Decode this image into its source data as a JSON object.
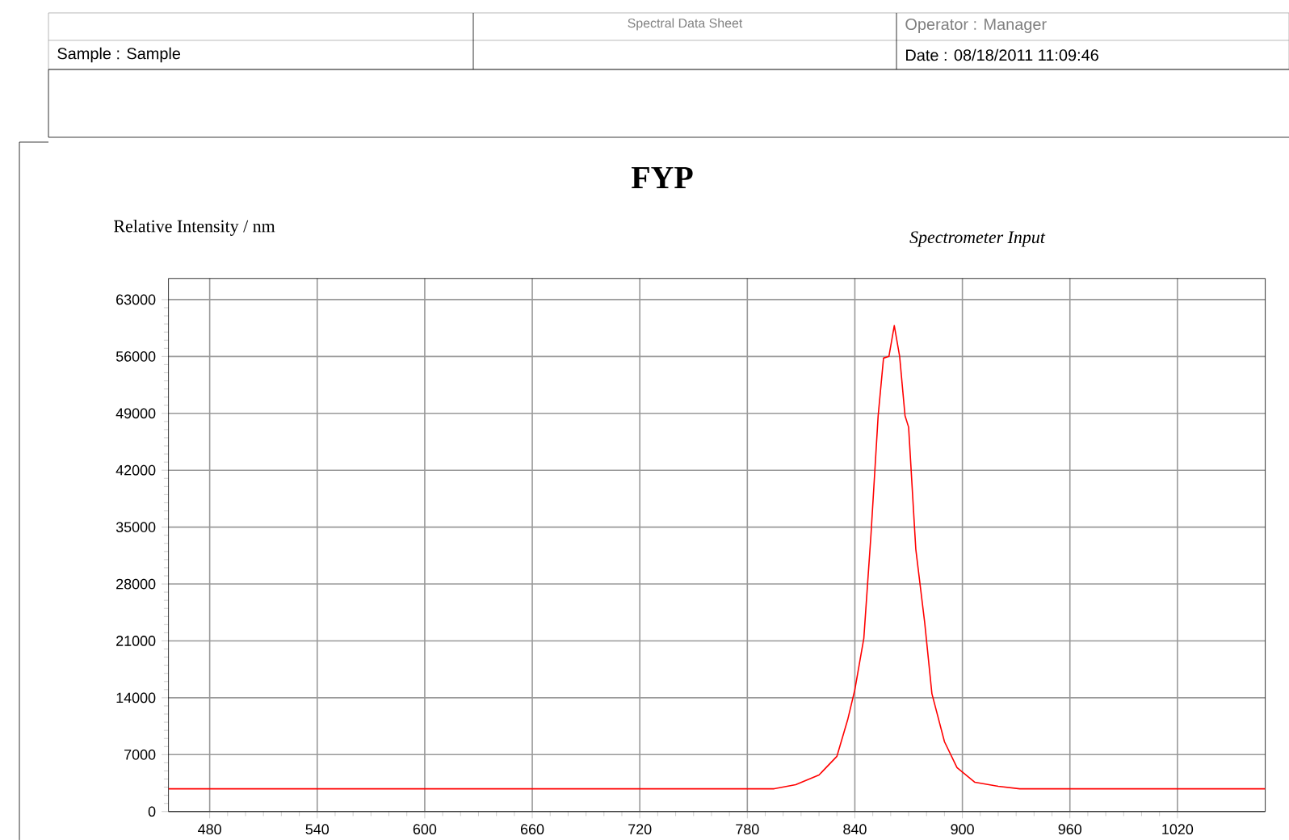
{
  "chart_data": {
    "type": "line",
    "title": "FYP",
    "ylabel": "Relative Intensity / nm",
    "annotations": [
      "Spectral Data Sheet",
      "Operator : Manager",
      "Sample : Sample",
      "Date : 08/18/2011   11:09:46"
    ],
    "series": [
      {
        "name": "Spectrometer Input",
        "color": "#ff0000",
        "x": [
          457,
          500,
          600,
          700,
          780,
          795,
          807,
          820,
          830,
          836,
          840,
          845,
          849,
          853,
          856,
          859,
          862,
          865,
          868,
          870,
          874,
          879,
          883,
          890,
          897,
          907,
          920,
          932,
          1000,
          1069
        ],
        "values": [
          2800,
          2800,
          2800,
          2800,
          2800,
          2800,
          3300,
          4500,
          6800,
          11300,
          15000,
          21300,
          34100,
          48700,
          55800,
          56000,
          59800,
          56000,
          48700,
          47300,
          32300,
          23200,
          14500,
          8600,
          5400,
          3600,
          3100,
          2800,
          2800,
          2800
        ]
      }
    ],
    "xlim": [
      457,
      1069
    ],
    "ylim": [
      0,
      65600
    ],
    "xticks": [
      480,
      540,
      600,
      660,
      720,
      780,
      840,
      900,
      960,
      1020
    ],
    "yticks": [
      0,
      7000,
      14000,
      21000,
      28000,
      35000,
      42000,
      49000,
      56000,
      63000
    ],
    "grid": true
  }
}
